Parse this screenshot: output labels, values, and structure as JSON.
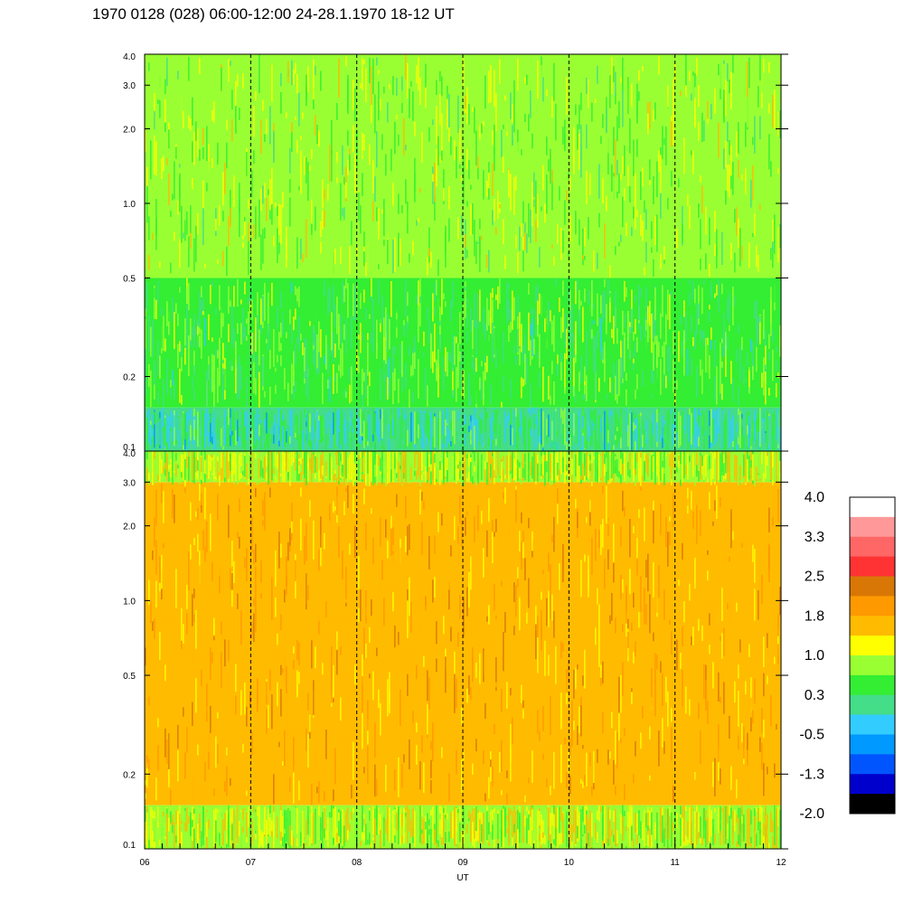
{
  "title": "1970 0128 (028) 06:00-12:00 24-28.1.1970  18-12 UT",
  "chart_data": {
    "type": "heatmap",
    "x_axis": {
      "label": "UT",
      "ticks": [
        "06",
        "07",
        "08",
        "09",
        "10",
        "11",
        "12"
      ],
      "range": [
        6,
        12
      ],
      "hour_markers": [
        7,
        8,
        9,
        10,
        11
      ]
    },
    "panels": [
      {
        "name": "upper",
        "y_scale": "log",
        "y_range": [
          0.1,
          4.0
        ],
        "y_ticks": [
          {
            "value": 0.1,
            "label": "0.1"
          },
          {
            "value": 0.2,
            "label": "0.2"
          },
          {
            "value": 0.5,
            "label": "0.5"
          },
          {
            "value": 1.0,
            "label": "1.0"
          },
          {
            "value": 2.0,
            "label": "2.0"
          },
          {
            "value": 3.0,
            "label": "3.0"
          },
          {
            "value": 4.0,
            "label": "4.0"
          }
        ],
        "dominant_levels_by_band": [
          {
            "y_from": 0.1,
            "y_to": 0.15,
            "level": 0.1
          },
          {
            "y_from": 0.15,
            "y_to": 0.5,
            "level": 0.5
          },
          {
            "y_from": 0.5,
            "y_to": 4.0,
            "level": 0.8
          }
        ]
      },
      {
        "name": "lower",
        "y_scale": "log",
        "y_range": [
          0.1,
          4.0
        ],
        "y_ticks": [
          {
            "value": 0.1,
            "label": "0.1"
          },
          {
            "value": 0.2,
            "label": "0.2"
          },
          {
            "value": 0.5,
            "label": "0.5"
          },
          {
            "value": 1.0,
            "label": "1.0"
          },
          {
            "value": 2.0,
            "label": "2.0"
          },
          {
            "value": 3.0,
            "label": "3.0"
          },
          {
            "value": 4.0,
            "label": "4.0"
          }
        ],
        "dominant_levels_by_band": [
          {
            "y_from": 0.1,
            "y_to": 0.15,
            "level": 1.0
          },
          {
            "y_from": 0.15,
            "y_to": 3.0,
            "level": 1.7
          },
          {
            "y_from": 3.0,
            "y_to": 4.0,
            "level": 1.0
          }
        ]
      }
    ],
    "colorbar": {
      "labels": [
        "4.0",
        "3.3",
        "2.5",
        "1.8",
        "1.0",
        "0.3",
        "-0.5",
        "-1.3",
        "-2.0"
      ],
      "colors": [
        "#ffffff",
        "#ff9999",
        "#ff6666",
        "#ff3333",
        "#d97706",
        "#ff9900",
        "#ffbb00",
        "#ffff00",
        "#99ff33",
        "#33ee33",
        "#44dd88",
        "#33ccff",
        "#0099ff",
        "#0055ff",
        "#0000cc",
        "#000000"
      ]
    }
  }
}
